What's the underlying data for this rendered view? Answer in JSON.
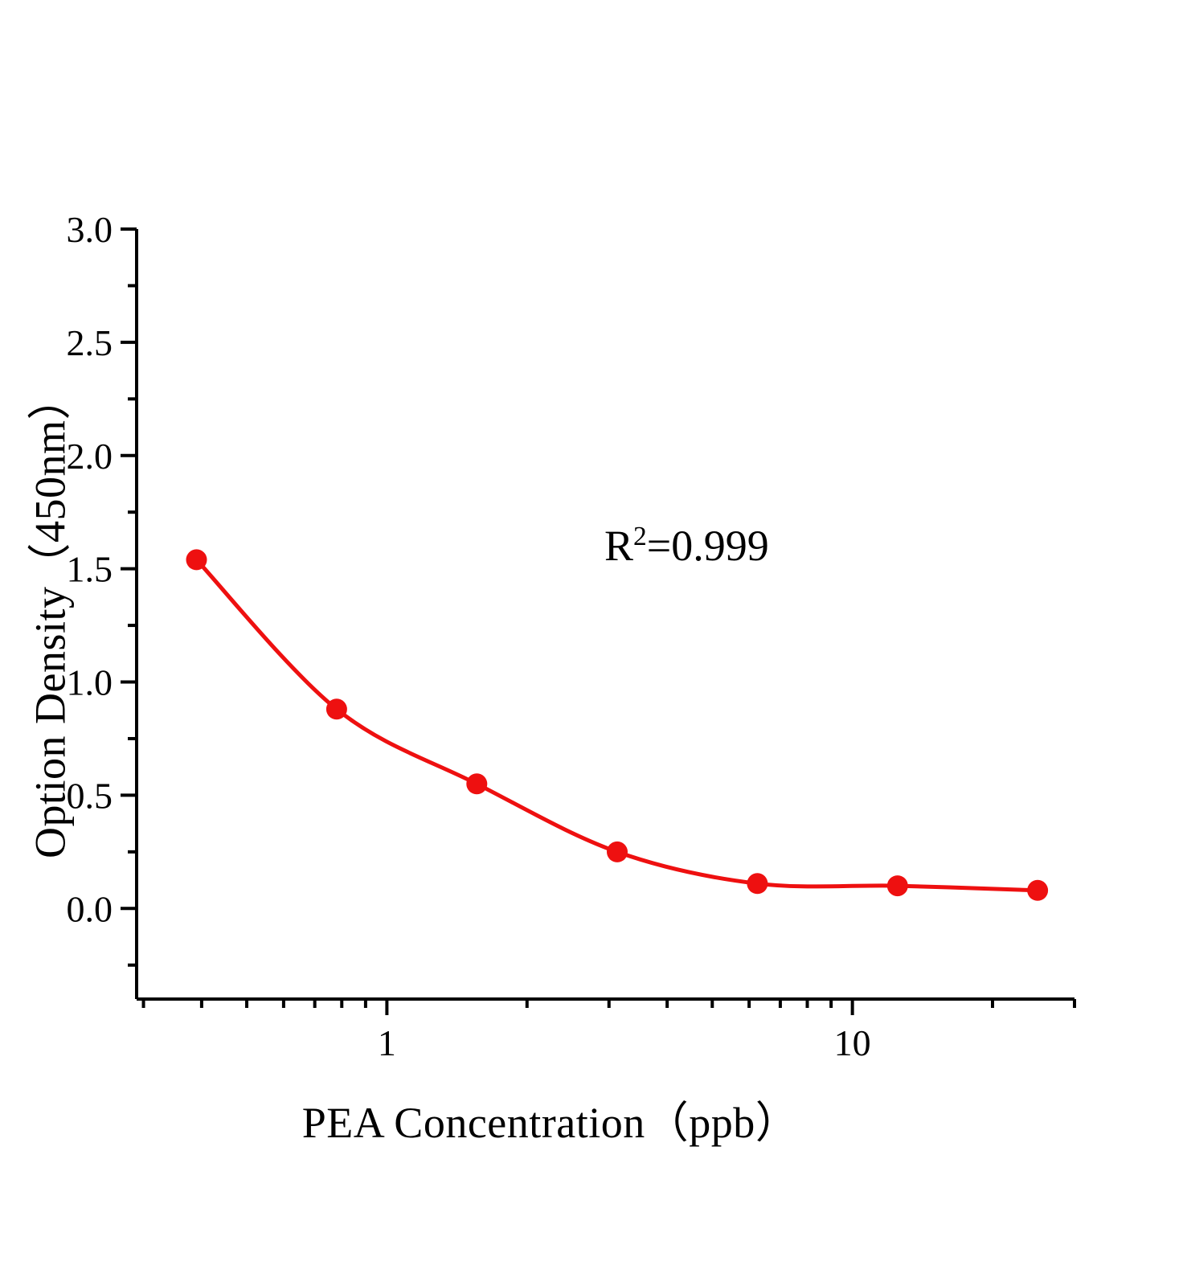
{
  "chart_data": {
    "type": "scatter",
    "title": "",
    "xlabel": "PEA Concentration（ppb）",
    "ylabel": "Option Density（450nm）",
    "x_scale": "log",
    "y_scale": "linear",
    "grid": false,
    "legend": "none",
    "x_domain": [
      0.29,
      30
    ],
    "y_domain": [
      -0.4,
      3.0
    ],
    "x_tick_labels": [
      {
        "value": 1,
        "label": "1"
      },
      {
        "value": 10,
        "label": "10"
      }
    ],
    "x_minor_ticks": [
      0.3,
      0.4,
      0.5,
      0.6,
      0.7,
      0.8,
      0.9,
      2,
      3,
      4,
      5,
      6,
      7,
      8,
      9,
      20,
      30
    ],
    "y_ticks": [
      {
        "value": 0.0,
        "label": "0.0"
      },
      {
        "value": 0.5,
        "label": "0.5"
      },
      {
        "value": 1.0,
        "label": "1.0"
      },
      {
        "value": 1.5,
        "label": "1.5"
      },
      {
        "value": 2.0,
        "label": "2.0"
      },
      {
        "value": 2.5,
        "label": "2.5"
      },
      {
        "value": 3.0,
        "label": "3.0"
      }
    ],
    "y_minor_ticks": [
      -0.25,
      0.25,
      0.75,
      1.25,
      1.75,
      2.25,
      2.75
    ],
    "points": [
      {
        "x": 0.39,
        "y": 1.54
      },
      {
        "x": 0.78,
        "y": 0.88
      },
      {
        "x": 1.56,
        "y": 0.55
      },
      {
        "x": 3.125,
        "y": 0.25
      },
      {
        "x": 6.25,
        "y": 0.11
      },
      {
        "x": 12.5,
        "y": 0.1
      },
      {
        "x": 25,
        "y": 0.08
      }
    ],
    "annotation": {
      "text": "R²=0.999",
      "base": "R",
      "exponent": "2",
      "rest": "=0.999"
    },
    "colors": {
      "series": "#ee1010",
      "axis": "#000000",
      "background": "#ffffff"
    }
  }
}
